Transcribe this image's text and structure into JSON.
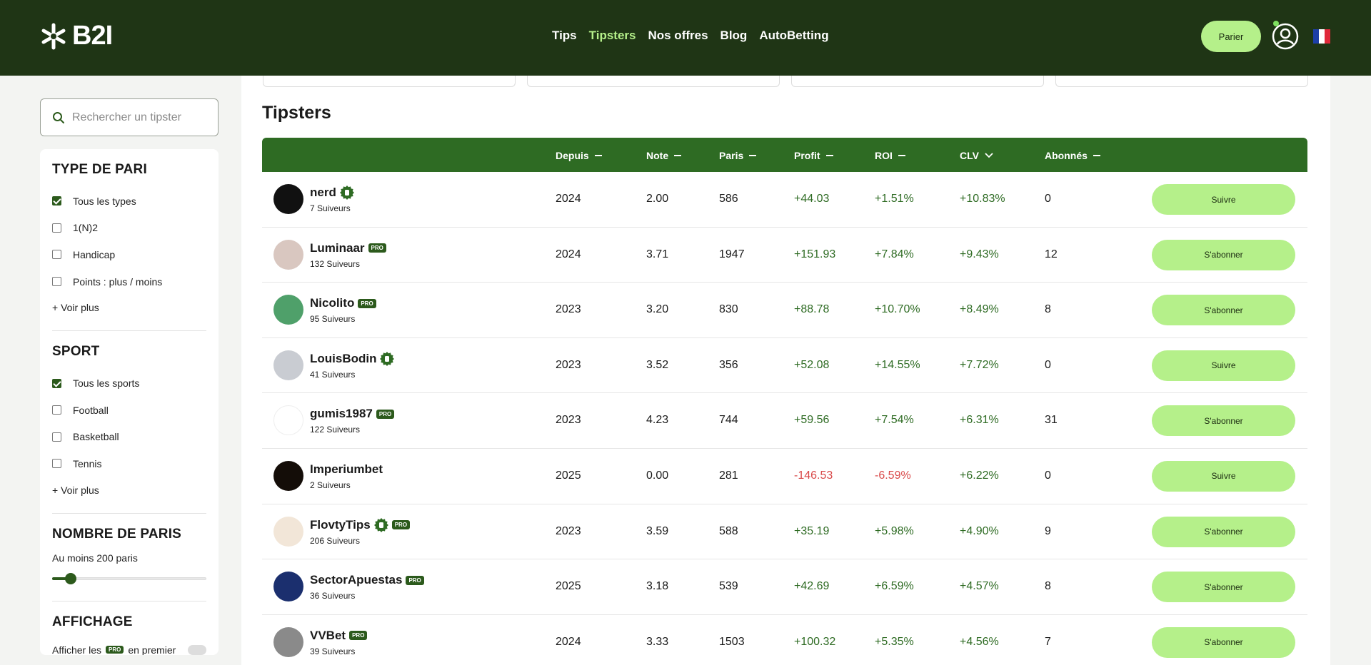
{
  "header": {
    "logo_text": "B2I",
    "nav": [
      {
        "label": "Tips",
        "active": false
      },
      {
        "label": "Tipsters",
        "active": true
      },
      {
        "label": "Nos offres",
        "active": false
      },
      {
        "label": "Blog",
        "active": false
      },
      {
        "label": "AutoBetting",
        "active": false
      }
    ],
    "bet_button": "Parier",
    "accent_color": "#b5f08a",
    "brand_color": "#1f3515"
  },
  "sidebar": {
    "search_placeholder": "Rechercher un tipster",
    "bet_type": {
      "title": "TYPE DE PARI",
      "options": [
        {
          "label": "Tous les types",
          "checked": true
        },
        {
          "label": "1(N)2",
          "checked": false
        },
        {
          "label": "Handicap",
          "checked": false
        },
        {
          "label": "Points : plus / moins",
          "checked": false
        }
      ],
      "more": "+ Voir plus"
    },
    "sport": {
      "title": "SPORT",
      "options": [
        {
          "label": "Tous les sports",
          "checked": true
        },
        {
          "label": "Football",
          "checked": false
        },
        {
          "label": "Basketball",
          "checked": false
        },
        {
          "label": "Tennis",
          "checked": false
        }
      ],
      "more": "+ Voir plus"
    },
    "bets_count": {
      "title": "NOMBRE DE PARIS",
      "label": "Au moins 200 paris",
      "slider_fraction": 0.12
    },
    "display": {
      "title": "AFFICHAGE",
      "text_before": "Afficher les",
      "badge": "PRO",
      "text_after": "en premier"
    }
  },
  "main": {
    "title": "Tipsters",
    "columns": {
      "since": "Depuis",
      "rating": "Note",
      "bets": "Paris",
      "profit": "Profit",
      "roi": "ROI",
      "clv": "CLV",
      "subscribers": "Abonnés"
    },
    "rows": [
      {
        "name": "nerd",
        "verified": true,
        "pro": false,
        "followers": "7 Suiveurs",
        "since": "2024",
        "rating": "2.00",
        "bets": "586",
        "profit": "+44.03",
        "roi": "+1.51%",
        "clv": "+10.83%",
        "subs": "0",
        "action": "Suivre",
        "avatar_color": "#111111"
      },
      {
        "name": "Luminaar",
        "verified": false,
        "pro": true,
        "followers": "132 Suiveurs",
        "since": "2024",
        "rating": "3.71",
        "bets": "1947",
        "profit": "+151.93",
        "roi": "+7.84%",
        "clv": "+9.43%",
        "subs": "12",
        "action": "S'abonner",
        "avatar_color": "#d9c7c0"
      },
      {
        "name": "Nicolito",
        "verified": false,
        "pro": true,
        "followers": "95 Suiveurs",
        "since": "2023",
        "rating": "3.20",
        "bets": "830",
        "profit": "+88.78",
        "roi": "+10.70%",
        "clv": "+8.49%",
        "subs": "8",
        "action": "S'abonner",
        "avatar_color": "#4fa06a"
      },
      {
        "name": "LouisBodin",
        "verified": true,
        "pro": false,
        "followers": "41 Suiveurs",
        "since": "2023",
        "rating": "3.52",
        "bets": "356",
        "profit": "+52.08",
        "roi": "+14.55%",
        "clv": "+7.72%",
        "subs": "0",
        "action": "Suivre",
        "avatar_color": "#c9ccd2"
      },
      {
        "name": "gumis1987",
        "verified": false,
        "pro": true,
        "followers": "122 Suiveurs",
        "since": "2023",
        "rating": "4.23",
        "bets": "744",
        "profit": "+59.56",
        "roi": "+7.54%",
        "clv": "+6.31%",
        "subs": "31",
        "action": "S'abonner",
        "avatar_color": "#ffffff"
      },
      {
        "name": "Imperiumbet",
        "verified": false,
        "pro": false,
        "followers": "2 Suiveurs",
        "since": "2025",
        "rating": "0.00",
        "bets": "281",
        "profit": "-146.53",
        "roi": "-6.59%",
        "clv": "+6.22%",
        "subs": "0",
        "action": "Suivre",
        "avatar_color": "#140d08"
      },
      {
        "name": "FlovtyTips",
        "verified": true,
        "pro": true,
        "followers": "206 Suiveurs",
        "since": "2023",
        "rating": "3.59",
        "bets": "588",
        "profit": "+35.19",
        "roi": "+5.98%",
        "clv": "+4.90%",
        "subs": "9",
        "action": "S'abonner",
        "avatar_color": "#f2e6d8"
      },
      {
        "name": "SectorApuestas",
        "verified": false,
        "pro": true,
        "followers": "36 Suiveurs",
        "since": "2025",
        "rating": "3.18",
        "bets": "539",
        "profit": "+42.69",
        "roi": "+6.59%",
        "clv": "+4.57%",
        "subs": "8",
        "action": "S'abonner",
        "avatar_color": "#1b2f6e"
      },
      {
        "name": "VVBet",
        "verified": false,
        "pro": true,
        "followers": "39 Suiveurs",
        "since": "2024",
        "rating": "3.33",
        "bets": "1503",
        "profit": "+100.32",
        "roi": "+5.35%",
        "clv": "+4.56%",
        "subs": "7",
        "action": "S'abonner",
        "avatar_color": "#8a8a8a"
      }
    ],
    "pro_badge": "PRO"
  }
}
